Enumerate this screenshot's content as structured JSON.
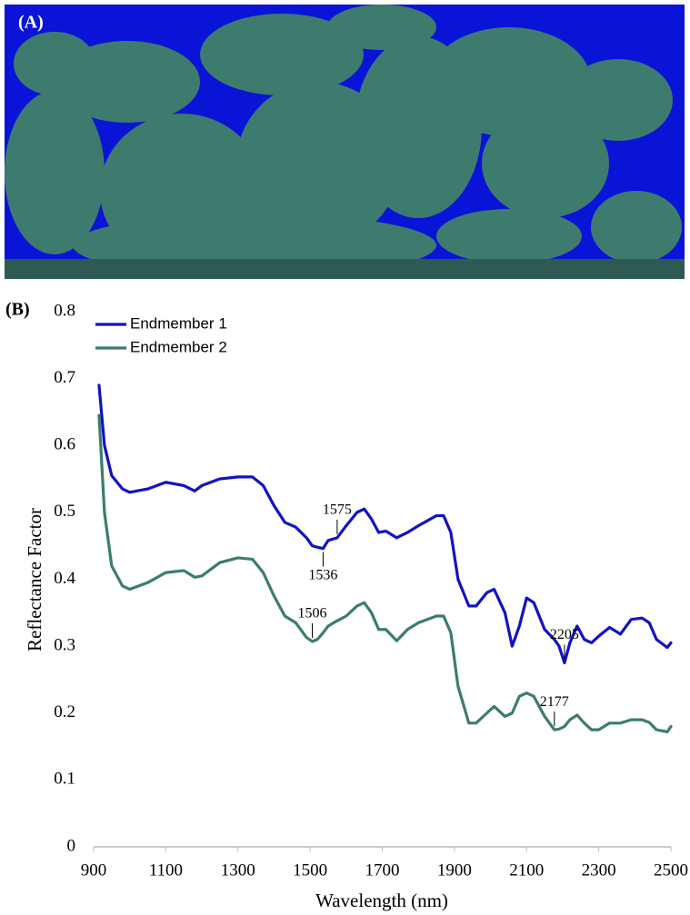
{
  "panel_labels": [
    "(A)",
    "(B)"
  ],
  "chart_data": {
    "type": "line",
    "x_label": "Wavelength (nm)",
    "y_label": "Reflectance Factor",
    "x": [
      915,
      930,
      950,
      980,
      1000,
      1050,
      1100,
      1150,
      1180,
      1200,
      1250,
      1300,
      1340,
      1370,
      1400,
      1430,
      1460,
      1490,
      1506,
      1520,
      1536,
      1550,
      1575,
      1600,
      1630,
      1650,
      1670,
      1690,
      1710,
      1740,
      1770,
      1800,
      1850,
      1870,
      1890,
      1910,
      1940,
      1960,
      1990,
      2010,
      2040,
      2060,
      2080,
      2100,
      2120,
      2150,
      2177,
      2190,
      2205,
      2220,
      2240,
      2260,
      2280,
      2300,
      2330,
      2360,
      2390,
      2420,
      2440,
      2460,
      2490,
      2500
    ],
    "series": [
      {
        "name": "Endmember 1",
        "color": "#1212c4",
        "values": [
          0.69,
          0.6,
          0.555,
          0.535,
          0.53,
          0.535,
          0.545,
          0.54,
          0.532,
          0.54,
          0.55,
          0.553,
          0.553,
          0.54,
          0.51,
          0.485,
          0.478,
          0.462,
          0.45,
          0.448,
          0.446,
          0.458,
          0.462,
          0.48,
          0.5,
          0.505,
          0.49,
          0.47,
          0.472,
          0.462,
          0.47,
          0.48,
          0.495,
          0.495,
          0.47,
          0.4,
          0.36,
          0.36,
          0.38,
          0.385,
          0.35,
          0.3,
          0.33,
          0.372,
          0.365,
          0.325,
          0.31,
          0.3,
          0.275,
          0.305,
          0.33,
          0.31,
          0.305,
          0.315,
          0.328,
          0.318,
          0.34,
          0.342,
          0.335,
          0.31,
          0.298,
          0.305
        ]
      },
      {
        "name": "Endmember 2",
        "color": "#3b7d6d",
        "values": [
          0.645,
          0.5,
          0.42,
          0.39,
          0.385,
          0.395,
          0.41,
          0.413,
          0.403,
          0.405,
          0.425,
          0.432,
          0.43,
          0.41,
          0.375,
          0.345,
          0.335,
          0.313,
          0.307,
          0.31,
          0.32,
          0.33,
          0.338,
          0.345,
          0.36,
          0.365,
          0.35,
          0.325,
          0.325,
          0.308,
          0.325,
          0.335,
          0.345,
          0.345,
          0.32,
          0.24,
          0.185,
          0.185,
          0.2,
          0.21,
          0.195,
          0.2,
          0.225,
          0.23,
          0.225,
          0.195,
          0.175,
          0.176,
          0.18,
          0.19,
          0.197,
          0.185,
          0.175,
          0.175,
          0.185,
          0.185,
          0.19,
          0.19,
          0.186,
          0.175,
          0.172,
          0.18
        ]
      }
    ],
    "annotations": [
      {
        "value": 1575,
        "label": "1575"
      },
      {
        "value": 1536,
        "label": "1536"
      },
      {
        "value": 1506,
        "label": "1506"
      },
      {
        "value": 2205,
        "label": "2205"
      },
      {
        "value": 2177,
        "label": "2177"
      }
    ],
    "xlim": [
      900,
      2500
    ],
    "xticks": [
      900,
      1100,
      1300,
      1500,
      1700,
      1900,
      2100,
      2300,
      2500
    ],
    "ylim": [
      0,
      0.8
    ],
    "yticks": [
      0,
      0.1,
      0.2,
      0.3,
      0.4,
      0.5,
      0.6,
      0.7,
      0.8
    ],
    "grid": false,
    "legend": "upper left"
  }
}
